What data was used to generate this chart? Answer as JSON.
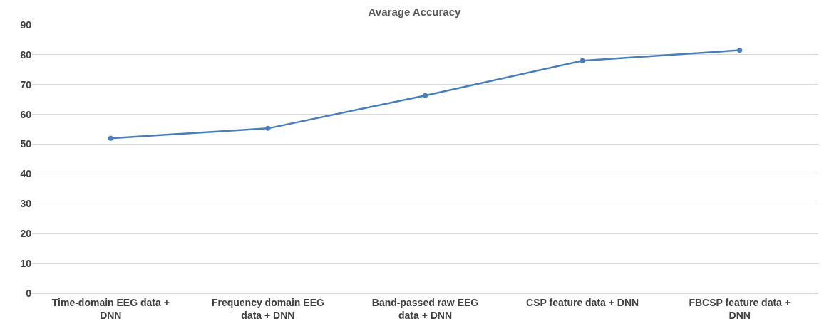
{
  "chart_data": {
    "type": "line",
    "title": "Avarage Accuracy",
    "categories": [
      "Time-domain EEG data + DNN",
      "Frequency domain EEG data + DNN",
      "Band-passed raw EEG data + DNN",
      "CSP feature data + DNN",
      "FBCSP feature data + DNN"
    ],
    "series": [
      {
        "color": "#4a7ebb",
        "values": [
          52,
          55.3,
          66.3,
          78,
          81.5
        ]
      }
    ],
    "ylim": [
      0,
      90
    ],
    "yticks": [
      0,
      10,
      20,
      30,
      40,
      50,
      60,
      70,
      80,
      90
    ],
    "grid": "y",
    "marker": "circle",
    "line_style": "solid",
    "legend": false
  }
}
